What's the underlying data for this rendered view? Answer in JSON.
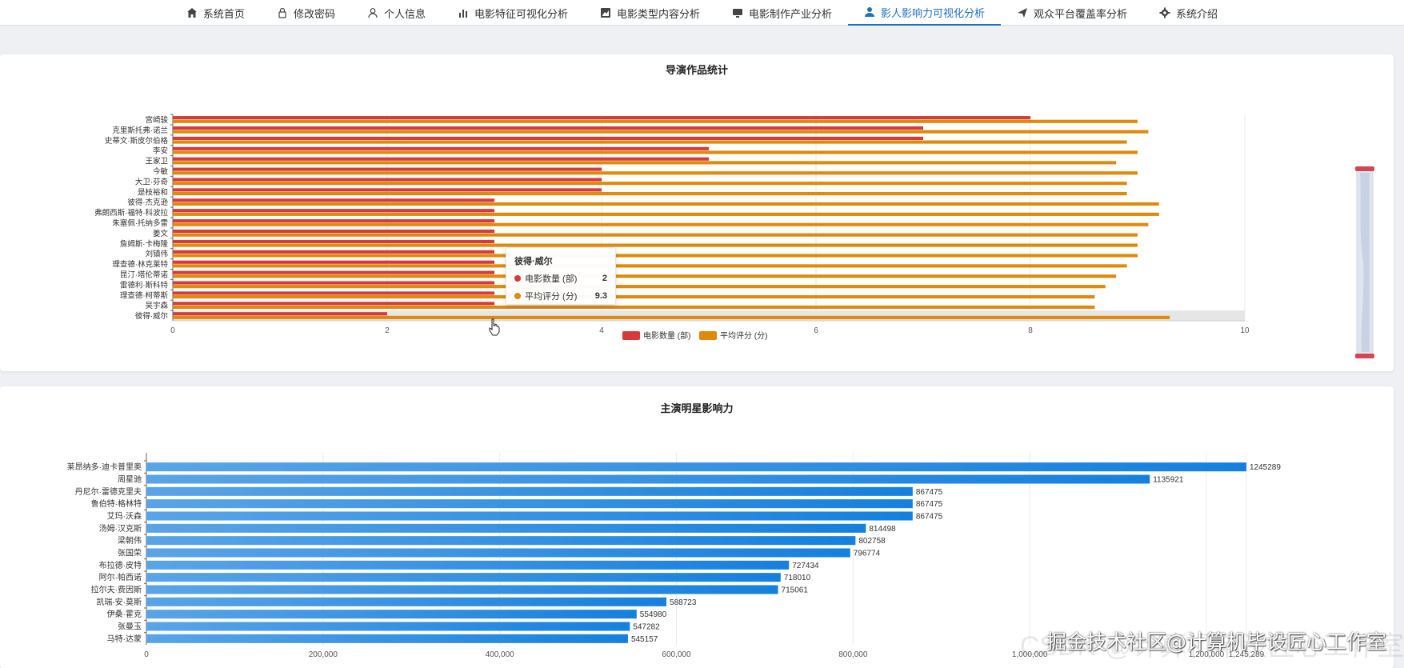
{
  "nav": {
    "items": [
      {
        "label": "系统首页",
        "icon": "home-icon"
      },
      {
        "label": "修改密码",
        "icon": "lock-icon"
      },
      {
        "label": "个人信息",
        "icon": "user-icon"
      },
      {
        "label": "电影特征可视化分析",
        "icon": "bar-chart-icon"
      },
      {
        "label": "电影类型内容分析",
        "icon": "area-chart-icon"
      },
      {
        "label": "电影制作产业分析",
        "icon": "monitor-icon"
      },
      {
        "label": "影人影响力可视化分析",
        "icon": "person-icon"
      },
      {
        "label": "观众平台覆盖率分析",
        "icon": "send-icon"
      },
      {
        "label": "系统介绍",
        "icon": "gear-icon"
      }
    ],
    "active_index": 6,
    "active_color": "#1f6fbf"
  },
  "watermark": {
    "text": "掘金技术社区@计算机毕设匠心工作室",
    "ghost": "CSDN @计算机毕设匠心工作室"
  },
  "tooltip": {
    "title": "彼得·威尔",
    "rows": [
      {
        "label": "电影数量 (部)",
        "value": "2",
        "color": "#d63a3a"
      },
      {
        "label": "平均评分 (分)",
        "value": "9.3",
        "color": "#e08a0b"
      }
    ]
  },
  "chart_data": [
    {
      "type": "bar",
      "orientation": "horizontal",
      "title": "导演作品统计",
      "categories": [
        "宫崎骏",
        "克里斯托弗·诺兰",
        "史蒂文·斯皮尔伯格",
        "李安",
        "王家卫",
        "今敏",
        "大卫·芬奇",
        "是枝裕和",
        "彼得·杰克逊",
        "弗朗西斯·福特·科波拉",
        "朱塞佩·托纳多雷",
        "姜文",
        "詹姆斯·卡梅隆",
        "刘镇伟",
        "理查德·林克莱特",
        "昆汀·塔伦蒂诺",
        "雷德利·斯科特",
        "理查德·柯蒂斯",
        "吴宇森",
        "彼得·威尔"
      ],
      "series": [
        {
          "name": "电影数量 (部)",
          "color": "#d63a3a",
          "values": [
            8,
            7,
            7,
            5,
            5,
            4,
            4,
            4,
            3,
            3,
            3,
            3,
            3,
            3,
            3,
            3,
            3,
            3,
            3,
            2
          ]
        },
        {
          "name": "平均评分 (分)",
          "color": "#e08a0b",
          "values": [
            9.0,
            9.1,
            8.9,
            9.0,
            8.8,
            9.0,
            8.9,
            8.9,
            9.2,
            9.2,
            9.1,
            9.0,
            9.0,
            9.0,
            8.9,
            8.8,
            8.7,
            8.6,
            8.6,
            9.3
          ]
        }
      ],
      "xlim": [
        0,
        10
      ],
      "xticks": [
        "0",
        "2",
        "4",
        "6",
        "8",
        "10"
      ],
      "legend": "bottom-center",
      "highlighted": "彼得·威尔"
    },
    {
      "type": "bar",
      "orientation": "horizontal",
      "title": "主演明星影响力",
      "categories": [
        "莱昂纳多·迪卡普里奥",
        "周星驰",
        "丹尼尔·雷德克里夫",
        "鲁伯特·格林特",
        "艾玛·沃森",
        "汤姆·汉克斯",
        "梁朝伟",
        "张国荣",
        "布拉德·皮特",
        "阿尔·帕西诺",
        "拉尔夫·费因斯",
        "凯瑞-安·莫斯",
        "伊桑·霍克",
        "张曼玉",
        "马特·达蒙"
      ],
      "values": [
        1245289,
        1135921,
        867475,
        867475,
        867475,
        814498,
        802758,
        796774,
        727434,
        718010,
        715061,
        588723,
        554980,
        547282,
        545157
      ],
      "xlim": [
        0,
        1245289
      ],
      "xticks": [
        "0",
        "200,000",
        "400,000",
        "600,000",
        "800,000",
        "1,000,000",
        "1,200,000",
        "1,245,289"
      ],
      "color": "#1580de",
      "data_labels": true
    }
  ]
}
